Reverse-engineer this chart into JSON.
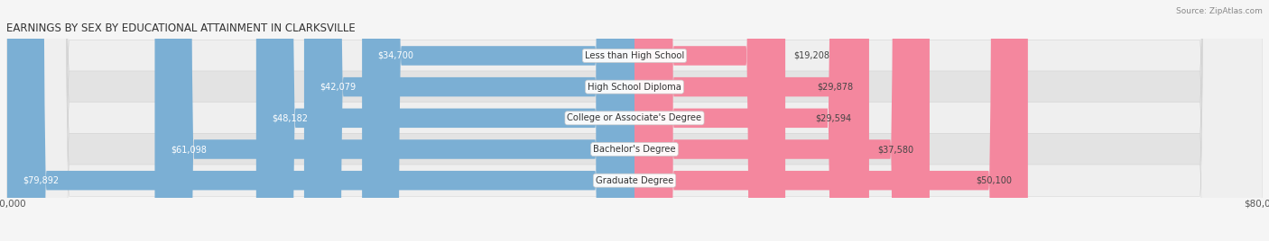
{
  "title": "EARNINGS BY SEX BY EDUCATIONAL ATTAINMENT IN CLARKSVILLE",
  "source": "Source: ZipAtlas.com",
  "categories": [
    "Less than High School",
    "High School Diploma",
    "College or Associate's Degree",
    "Bachelor's Degree",
    "Graduate Degree"
  ],
  "male_values": [
    34700,
    42079,
    48182,
    61098,
    79892
  ],
  "female_values": [
    19208,
    29878,
    29594,
    37580,
    50100
  ],
  "male_color": "#7bafd4",
  "female_color": "#f4879e",
  "row_bg_light": "#efefef",
  "row_bg_dark": "#e3e3e3",
  "fig_bg": "#f5f5f5",
  "max_value": 80000,
  "title_fontsize": 8.5,
  "bar_height": 0.62,
  "figsize": [
    14.06,
    2.68
  ],
  "dpi": 100
}
